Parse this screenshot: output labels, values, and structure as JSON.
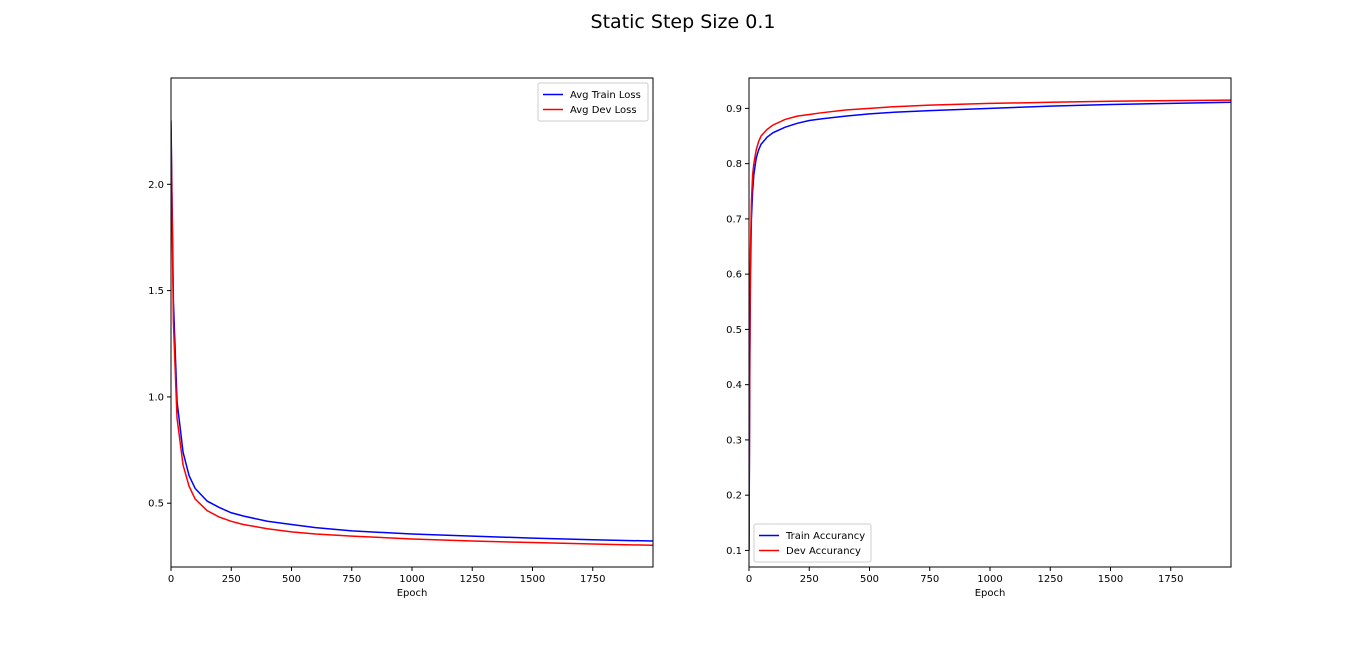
{
  "figure": {
    "title": "Static Step Size 0.1"
  },
  "chart_data": [
    {
      "type": "line",
      "title": "",
      "xlabel": "Epoch",
      "ylabel": "",
      "xlim": [
        0,
        2000
      ],
      "ylim": [
        0.2,
        2.5
      ],
      "xticks": [
        0,
        250,
        500,
        750,
        1000,
        1250,
        1500,
        1750
      ],
      "yticks": [
        0.5,
        1.0,
        1.5,
        2.0
      ],
      "ytick_labels": [
        "0.5",
        "1.0",
        "1.5",
        "2.0"
      ],
      "legend_position": "top-right",
      "grid": false,
      "series": [
        {
          "name": "Avg Train Loss",
          "color": "#0000ff",
          "x": [
            0,
            10,
            25,
            50,
            75,
            100,
            150,
            200,
            250,
            300,
            400,
            500,
            600,
            750,
            1000,
            1250,
            1500,
            1750,
            2000
          ],
          "y": [
            2.3,
            1.45,
            0.98,
            0.74,
            0.63,
            0.57,
            0.51,
            0.48,
            0.455,
            0.44,
            0.415,
            0.4,
            0.385,
            0.37,
            0.355,
            0.345,
            0.336,
            0.328,
            0.322
          ]
        },
        {
          "name": "Avg Dev Loss",
          "color": "#ff0000",
          "x": [
            0,
            10,
            25,
            50,
            75,
            100,
            150,
            200,
            250,
            300,
            400,
            500,
            600,
            750,
            1000,
            1250,
            1500,
            1750,
            2000
          ],
          "y": [
            2.25,
            1.35,
            0.9,
            0.68,
            0.58,
            0.52,
            0.465,
            0.435,
            0.415,
            0.4,
            0.38,
            0.365,
            0.355,
            0.345,
            0.332,
            0.322,
            0.315,
            0.308,
            0.302
          ]
        }
      ]
    },
    {
      "type": "line",
      "title": "",
      "xlabel": "Epoch",
      "ylabel": "",
      "xlim": [
        0,
        2000
      ],
      "ylim": [
        0.07,
        0.955
      ],
      "xticks": [
        0,
        250,
        500,
        750,
        1000,
        1250,
        1500,
        1750
      ],
      "yticks": [
        0.1,
        0.2,
        0.3,
        0.4,
        0.5,
        0.6,
        0.7,
        0.8,
        0.9
      ],
      "ytick_labels": [
        "0.1",
        "0.2",
        "0.3",
        "0.4",
        "0.5",
        "0.6",
        "0.7",
        "0.8",
        "0.9"
      ],
      "legend_position": "bottom-left",
      "grid": false,
      "series": [
        {
          "name": "Train Accurancy",
          "color": "#0000ff",
          "x": [
            0,
            3,
            6,
            10,
            15,
            20,
            30,
            40,
            50,
            75,
            100,
            150,
            200,
            250,
            300,
            400,
            500,
            600,
            750,
            1000,
            1250,
            1500,
            1750,
            2000
          ],
          "y": [
            0.1,
            0.4,
            0.6,
            0.7,
            0.75,
            0.78,
            0.81,
            0.825,
            0.835,
            0.848,
            0.856,
            0.866,
            0.873,
            0.878,
            0.881,
            0.886,
            0.89,
            0.893,
            0.896,
            0.9,
            0.904,
            0.907,
            0.909,
            0.911
          ]
        },
        {
          "name": "Dev Accurancy",
          "color": "#ff0000",
          "x": [
            0,
            3,
            6,
            10,
            15,
            20,
            30,
            40,
            50,
            75,
            100,
            150,
            200,
            250,
            300,
            400,
            500,
            600,
            750,
            1000,
            1250,
            1500,
            1750,
            2000
          ],
          "y": [
            0.1,
            0.45,
            0.64,
            0.73,
            0.78,
            0.8,
            0.825,
            0.84,
            0.85,
            0.862,
            0.87,
            0.88,
            0.886,
            0.889,
            0.892,
            0.897,
            0.9,
            0.903,
            0.906,
            0.909,
            0.911,
            0.913,
            0.914,
            0.915
          ]
        }
      ]
    }
  ]
}
